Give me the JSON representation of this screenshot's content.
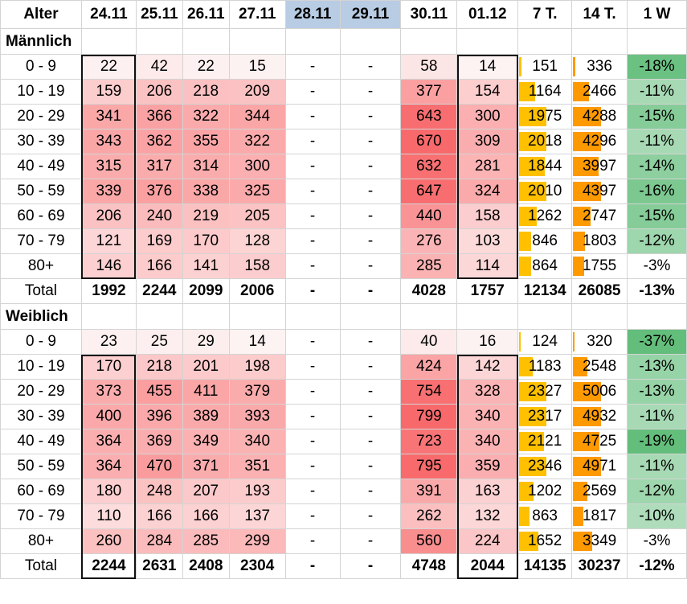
{
  "header": {
    "alter": "Alter",
    "dates": [
      "24.11",
      "25.11",
      "26.11",
      "27.11",
      "28.11",
      "29.11",
      "30.11",
      "01.12"
    ],
    "t7": "7 T.",
    "t14": "14 T.",
    "w1": "1 W"
  },
  "colors": {
    "heat_max": "#f8696b",
    "heat_min": "#ffffff",
    "bar7": "#ffc000",
    "bar14": "#ff9900",
    "green_max": "#63be7b",
    "holiday": "#b8cce4"
  },
  "sections": [
    {
      "title": "Männlich",
      "rows": [
        {
          "age": "0 - 9",
          "v": [
            "22",
            "42",
            "22",
            "15",
            "-",
            "-",
            "58",
            "14"
          ],
          "t7": "151",
          "t14": "336",
          "w1": "-18%"
        },
        {
          "age": "10 - 19",
          "v": [
            "159",
            "206",
            "218",
            "209",
            "-",
            "-",
            "377",
            "154"
          ],
          "t7": "1164",
          "t14": "2466",
          "w1": "-11%"
        },
        {
          "age": "20 - 29",
          "v": [
            "341",
            "366",
            "322",
            "344",
            "-",
            "-",
            "643",
            "300"
          ],
          "t7": "1975",
          "t14": "4288",
          "w1": "-15%"
        },
        {
          "age": "30 - 39",
          "v": [
            "343",
            "362",
            "355",
            "322",
            "-",
            "-",
            "670",
            "309"
          ],
          "t7": "2018",
          "t14": "4296",
          "w1": "-11%"
        },
        {
          "age": "40 - 49",
          "v": [
            "315",
            "317",
            "314",
            "300",
            "-",
            "-",
            "632",
            "281"
          ],
          "t7": "1844",
          "t14": "3997",
          "w1": "-14%"
        },
        {
          "age": "50 - 59",
          "v": [
            "339",
            "376",
            "338",
            "325",
            "-",
            "-",
            "647",
            "324"
          ],
          "t7": "2010",
          "t14": "4397",
          "w1": "-16%"
        },
        {
          "age": "60 - 69",
          "v": [
            "206",
            "240",
            "219",
            "205",
            "-",
            "-",
            "440",
            "158"
          ],
          "t7": "1262",
          "t14": "2747",
          "w1": "-15%"
        },
        {
          "age": "70 - 79",
          "v": [
            "121",
            "169",
            "170",
            "128",
            "-",
            "-",
            "276",
            "103"
          ],
          "t7": "846",
          "t14": "1803",
          "w1": "-12%"
        },
        {
          "age": "80+",
          "v": [
            "146",
            "166",
            "141",
            "158",
            "-",
            "-",
            "285",
            "114"
          ],
          "t7": "864",
          "t14": "1755",
          "w1": "-3%"
        }
      ],
      "total": {
        "age": "Total",
        "v": [
          "1992",
          "2244",
          "2099",
          "2006",
          "-",
          "-",
          "4028",
          "1757"
        ],
        "t7": "12134",
        "t14": "26085",
        "w1": "-13%"
      }
    },
    {
      "title": "Weiblich",
      "rows": [
        {
          "age": "0 - 9",
          "v": [
            "23",
            "25",
            "29",
            "14",
            "-",
            "-",
            "40",
            "16"
          ],
          "t7": "124",
          "t14": "320",
          "w1": "-37%"
        },
        {
          "age": "10 - 19",
          "v": [
            "170",
            "218",
            "201",
            "198",
            "-",
            "-",
            "424",
            "142"
          ],
          "t7": "1183",
          "t14": "2548",
          "w1": "-13%"
        },
        {
          "age": "20 - 29",
          "v": [
            "373",
            "455",
            "411",
            "379",
            "-",
            "-",
            "754",
            "328"
          ],
          "t7": "2327",
          "t14": "5006",
          "w1": "-13%"
        },
        {
          "age": "30 - 39",
          "v": [
            "400",
            "396",
            "389",
            "393",
            "-",
            "-",
            "799",
            "340"
          ],
          "t7": "2317",
          "t14": "4932",
          "w1": "-11%"
        },
        {
          "age": "40 - 49",
          "v": [
            "364",
            "369",
            "349",
            "340",
            "-",
            "-",
            "723",
            "340"
          ],
          "t7": "2121",
          "t14": "4725",
          "w1": "-19%"
        },
        {
          "age": "50 - 59",
          "v": [
            "364",
            "470",
            "371",
            "351",
            "-",
            "-",
            "795",
            "359"
          ],
          "t7": "2346",
          "t14": "4971",
          "w1": "-11%"
        },
        {
          "age": "60 - 69",
          "v": [
            "180",
            "248",
            "207",
            "193",
            "-",
            "-",
            "391",
            "163"
          ],
          "t7": "1202",
          "t14": "2569",
          "w1": "-12%"
        },
        {
          "age": "70 - 79",
          "v": [
            "110",
            "166",
            "166",
            "137",
            "-",
            "-",
            "262",
            "132"
          ],
          "t7": "863",
          "t14": "1817",
          "w1": "-10%"
        },
        {
          "age": "80+",
          "v": [
            "260",
            "284",
            "285",
            "299",
            "-",
            "-",
            "560",
            "224"
          ],
          "t7": "1652",
          "t14": "3349",
          "w1": "-3%"
        }
      ],
      "total": {
        "age": "Total",
        "v": [
          "2244",
          "2631",
          "2408",
          "2304",
          "-",
          "-",
          "4748",
          "2044"
        ],
        "t7": "14135",
        "t14": "30237",
        "w1": "-12%"
      }
    }
  ]
}
